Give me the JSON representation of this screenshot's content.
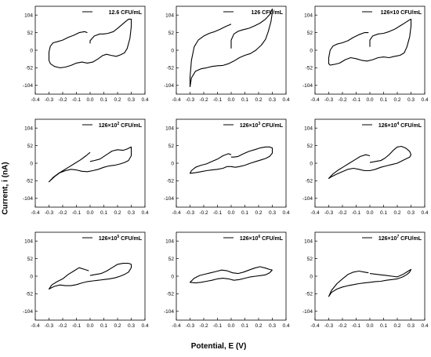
{
  "figure": {
    "ylabel": "Current, i (nA)",
    "xlabel": "Potential, E (V)"
  },
  "chart_data": [
    {
      "type": "line",
      "label": "12.6 CFU/mL",
      "label_sup": "",
      "xlim": [
        -0.4,
        0.4
      ],
      "ylim": [
        -130,
        130
      ],
      "xticks": [
        -0.4,
        -0.3,
        -0.2,
        -0.1,
        0.0,
        0.1,
        0.2,
        0.3,
        0.4
      ],
      "yticks": [
        104,
        52,
        0,
        -52,
        -104
      ],
      "series": [
        {
          "x": [
            0.0,
            0.0,
            0.03,
            0.07,
            0.1,
            0.13,
            0.17,
            0.21,
            0.25,
            0.28,
            0.3,
            0.3,
            0.29,
            0.27,
            0.25,
            0.22,
            0.19,
            0.15,
            0.12,
            0.09,
            0.06,
            0.02,
            -0.02,
            -0.06,
            -0.1,
            -0.14,
            -0.18,
            -0.22,
            -0.26,
            -0.29,
            -0.3,
            -0.3,
            -0.29,
            -0.27,
            -0.24,
            -0.2,
            -0.16,
            -0.12,
            -0.08,
            -0.04,
            -0.02
          ],
          "y": [
            20,
            28,
            42,
            48,
            48,
            50,
            55,
            68,
            82,
            92,
            92,
            70,
            35,
            5,
            -8,
            -14,
            -18,
            -15,
            -12,
            -16,
            -25,
            -35,
            -38,
            -35,
            -38,
            -45,
            -50,
            -52,
            -48,
            -40,
            -30,
            -5,
            12,
            22,
            25,
            30,
            38,
            44,
            52,
            55,
            52
          ]
        }
      ]
    },
    {
      "type": "line",
      "label": "126 CFU/mL",
      "label_sup": "",
      "xlim": [
        -0.4,
        0.4
      ],
      "ylim": [
        -130,
        130
      ],
      "xticks": [
        -0.4,
        -0.3,
        -0.2,
        -0.1,
        0.0,
        0.1,
        0.2,
        0.3,
        0.4
      ],
      "yticks": [
        104,
        52,
        0,
        -52,
        -104
      ],
      "series": [
        {
          "x": [
            0.0,
            0.0,
            0.02,
            0.05,
            0.08,
            0.1,
            0.13,
            0.17,
            0.21,
            0.25,
            0.28,
            0.3,
            0.3,
            0.29,
            0.27,
            0.25,
            0.22,
            0.18,
            0.14,
            0.1,
            0.06,
            0.02,
            -0.02,
            -0.06,
            -0.1,
            -0.14,
            -0.18,
            -0.22,
            -0.26,
            -0.29,
            -0.3,
            -0.3,
            -0.29,
            -0.27,
            -0.24,
            -0.2,
            -0.16,
            -0.12,
            -0.08,
            -0.04,
            0.0
          ],
          "y": [
            5,
            30,
            48,
            56,
            60,
            62,
            65,
            72,
            80,
            92,
            105,
            122,
            112,
            85,
            55,
            32,
            15,
            0,
            -10,
            -15,
            -22,
            -32,
            -40,
            -45,
            -46,
            -48,
            -52,
            -55,
            -62,
            -82,
            -108,
            -80,
            -30,
            10,
            30,
            42,
            50,
            55,
            62,
            70,
            77
          ]
        }
      ]
    },
    {
      "type": "line",
      "label": "126×10 CFU/mL",
      "label_sup": "",
      "xlim": [
        -0.4,
        0.4
      ],
      "ylim": [
        -130,
        130
      ],
      "xticks": [
        -0.4,
        -0.3,
        -0.2,
        -0.1,
        0.0,
        0.1,
        0.2,
        0.3,
        0.4
      ],
      "yticks": [
        104,
        52,
        0,
        -52,
        -104
      ],
      "series": [
        {
          "x": [
            0.0,
            0.0,
            0.02,
            0.06,
            0.1,
            0.14,
            0.18,
            0.22,
            0.26,
            0.29,
            0.3,
            0.3,
            0.29,
            0.27,
            0.25,
            0.22,
            0.18,
            0.14,
            0.1,
            0.06,
            0.02,
            -0.02,
            -0.06,
            -0.1,
            -0.14,
            -0.18,
            -0.22,
            -0.26,
            -0.29,
            -0.3,
            -0.3,
            -0.29,
            -0.27,
            -0.24,
            -0.2,
            -0.16,
            -0.12,
            -0.08,
            -0.04,
            -0.01
          ],
          "y": [
            10,
            30,
            42,
            48,
            50,
            55,
            62,
            72,
            82,
            90,
            92,
            72,
            40,
            10,
            -8,
            -15,
            -18,
            -22,
            -20,
            -22,
            -28,
            -32,
            -30,
            -25,
            -22,
            -28,
            -38,
            -42,
            -44,
            -40,
            -22,
            0,
            12,
            18,
            22,
            28,
            38,
            46,
            52,
            52
          ]
        }
      ]
    },
    {
      "type": "line",
      "label": "126×10",
      "label_sup": "2",
      "xlim": [
        -0.4,
        0.4
      ],
      "ylim": [
        -130,
        130
      ],
      "xticks": [
        -0.4,
        -0.3,
        -0.2,
        -0.1,
        0.0,
        0.1,
        0.2,
        0.3,
        0.4
      ],
      "yticks": [
        104,
        52,
        0,
        -52,
        -104
      ],
      "series": [
        {
          "x": [
            0.0,
            0.03,
            0.07,
            0.1,
            0.13,
            0.16,
            0.2,
            0.24,
            0.27,
            0.3,
            0.3,
            0.28,
            0.25,
            0.22,
            0.18,
            0.14,
            0.1,
            0.06,
            0.02,
            -0.02,
            -0.06,
            -0.1,
            -0.14,
            -0.18,
            -0.22,
            -0.26,
            -0.3,
            -0.27,
            -0.23,
            -0.19,
            -0.15,
            -0.11,
            -0.07,
            -0.03,
            0.0
          ],
          "y": [
            5,
            8,
            12,
            20,
            28,
            36,
            40,
            38,
            42,
            48,
            22,
            8,
            2,
            -2,
            -6,
            -8,
            -12,
            -18,
            -22,
            -25,
            -24,
            -20,
            -18,
            -22,
            -28,
            -40,
            -55,
            -42,
            -30,
            -20,
            -10,
            0,
            10,
            22,
            32
          ]
        }
      ]
    },
    {
      "type": "line",
      "label": "126×10",
      "label_sup": "3",
      "xlim": [
        -0.4,
        0.4
      ],
      "ylim": [
        -130,
        130
      ],
      "xticks": [
        -0.4,
        -0.3,
        -0.2,
        -0.1,
        0.0,
        0.1,
        0.2,
        0.3,
        0.4
      ],
      "yticks": [
        104,
        52,
        0,
        -52,
        -104
      ],
      "series": [
        {
          "x": [
            0.0,
            0.02,
            0.05,
            0.09,
            0.13,
            0.17,
            0.21,
            0.25,
            0.28,
            0.3,
            0.3,
            0.28,
            0.25,
            0.22,
            0.18,
            0.14,
            0.1,
            0.06,
            0.03,
            0.0,
            -0.03,
            -0.06,
            -0.1,
            -0.14,
            -0.18,
            -0.22,
            -0.26,
            -0.3,
            -0.29,
            -0.26,
            -0.22,
            -0.18,
            -0.14,
            -0.1,
            -0.06,
            -0.02,
            0.0
          ],
          "y": [
            18,
            18,
            20,
            28,
            35,
            40,
            45,
            48,
            48,
            45,
            30,
            20,
            14,
            10,
            5,
            0,
            -6,
            -10,
            -12,
            -10,
            -10,
            -15,
            -18,
            -20,
            -22,
            -25,
            -28,
            -30,
            -22,
            -12,
            -6,
            -2,
            5,
            12,
            22,
            28,
            25
          ]
        }
      ]
    },
    {
      "type": "line",
      "label": "126×10",
      "label_sup": "4",
      "xlim": [
        -0.4,
        0.4
      ],
      "ylim": [
        -130,
        130
      ],
      "xticks": [
        -0.4,
        -0.3,
        -0.2,
        -0.1,
        0.0,
        0.1,
        0.2,
        0.3,
        0.4
      ],
      "yticks": [
        104,
        52,
        0,
        -52,
        -104
      ],
      "series": [
        {
          "x": [
            0.0,
            0.04,
            0.08,
            0.11,
            0.14,
            0.17,
            0.2,
            0.23,
            0.26,
            0.29,
            0.3,
            0.29,
            0.26,
            0.23,
            0.2,
            0.16,
            0.12,
            0.08,
            0.04,
            0.0,
            -0.04,
            -0.08,
            -0.12,
            -0.16,
            -0.2,
            -0.24,
            -0.28,
            -0.3,
            -0.27,
            -0.23,
            -0.19,
            -0.15,
            -0.11,
            -0.07,
            -0.03,
            0.0
          ],
          "y": [
            2,
            5,
            8,
            15,
            25,
            38,
            48,
            50,
            45,
            35,
            25,
            18,
            12,
            6,
            0,
            -4,
            -8,
            -12,
            -18,
            -22,
            -22,
            -18,
            -15,
            -18,
            -25,
            -32,
            -40,
            -45,
            -32,
            -20,
            -10,
            0,
            10,
            20,
            25,
            22
          ]
        }
      ]
    },
    {
      "type": "line",
      "label": "126×10",
      "label_sup": "5",
      "xlim": [
        -0.4,
        0.4
      ],
      "ylim": [
        -130,
        130
      ],
      "xticks": [
        -0.4,
        -0.3,
        -0.2,
        -0.1,
        0.0,
        0.1,
        0.2,
        0.3,
        0.4
      ],
      "yticks": [
        104,
        52,
        0,
        -52,
        -104
      ],
      "series": [
        {
          "x": [
            0.0,
            0.04,
            0.08,
            0.12,
            0.16,
            0.2,
            0.24,
            0.28,
            0.3,
            0.3,
            0.28,
            0.25,
            0.22,
            0.18,
            0.14,
            0.1,
            0.06,
            0.02,
            -0.02,
            -0.06,
            -0.1,
            -0.14,
            -0.18,
            -0.22,
            -0.26,
            -0.3,
            -0.28,
            -0.24,
            -0.2,
            -0.16,
            -0.12,
            -0.08,
            -0.04,
            -0.01
          ],
          "y": [
            2,
            5,
            8,
            15,
            25,
            35,
            38,
            38,
            35,
            25,
            12,
            5,
            0,
            -5,
            -8,
            -10,
            -12,
            -14,
            -16,
            -20,
            -25,
            -28,
            -28,
            -26,
            -30,
            -38,
            -26,
            -16,
            -8,
            5,
            15,
            25,
            20,
            16
          ]
        }
      ]
    },
    {
      "type": "line",
      "label": "126×10",
      "label_sup": "6",
      "xlim": [
        -0.4,
        0.4
      ],
      "ylim": [
        -130,
        130
      ],
      "xticks": [
        -0.4,
        -0.3,
        -0.2,
        -0.1,
        0.0,
        0.1,
        0.2,
        0.3,
        0.4
      ],
      "yticks": [
        104,
        52,
        0,
        -52,
        -104
      ],
      "series": [
        {
          "x": [
            0.3,
            0.28,
            0.25,
            0.22,
            0.18,
            0.14,
            0.1,
            0.06,
            0.02,
            -0.02,
            -0.06,
            -0.1,
            -0.14,
            -0.18,
            -0.22,
            -0.26,
            -0.3,
            -0.27,
            -0.23,
            -0.19,
            -0.15,
            -0.11,
            -0.07,
            -0.03,
            0.01,
            0.05,
            0.09,
            0.13,
            0.17,
            0.21,
            0.25,
            0.28,
            0.3
          ],
          "y": [
            18,
            10,
            4,
            2,
            0,
            -2,
            -6,
            -10,
            -12,
            -8,
            -6,
            -8,
            -12,
            -15,
            -18,
            -20,
            -18,
            -6,
            2,
            6,
            10,
            14,
            18,
            16,
            10,
            8,
            12,
            18,
            24,
            28,
            24,
            20,
            18
          ]
        }
      ]
    },
    {
      "type": "line",
      "label": "126×10",
      "label_sup": "7",
      "xlim": [
        -0.4,
        0.4
      ],
      "ylim": [
        -130,
        130
      ],
      "xticks": [
        -0.4,
        -0.3,
        -0.2,
        -0.1,
        0.0,
        0.1,
        0.2,
        0.3,
        0.4
      ],
      "yticks": [
        104,
        52,
        0,
        -52,
        -104
      ],
      "series": [
        {
          "x": [
            0.0,
            0.04,
            0.08,
            0.12,
            0.16,
            0.2,
            0.24,
            0.28,
            0.3,
            0.29,
            0.27,
            0.24,
            0.2,
            0.16,
            0.12,
            0.08,
            0.04,
            0.0,
            -0.04,
            -0.08,
            -0.12,
            -0.16,
            -0.2,
            -0.24,
            -0.28,
            -0.3,
            -0.28,
            -0.24,
            -0.2,
            -0.16,
            -0.12,
            -0.08,
            -0.04,
            -0.01
          ],
          "y": [
            8,
            6,
            4,
            2,
            0,
            -2,
            5,
            15,
            20,
            12,
            5,
            -2,
            -8,
            -10,
            -12,
            -15,
            -16,
            -18,
            -20,
            -22,
            -25,
            -28,
            -32,
            -38,
            -48,
            -60,
            -42,
            -22,
            -8,
            5,
            12,
            15,
            12,
            10
          ]
        }
      ]
    }
  ]
}
